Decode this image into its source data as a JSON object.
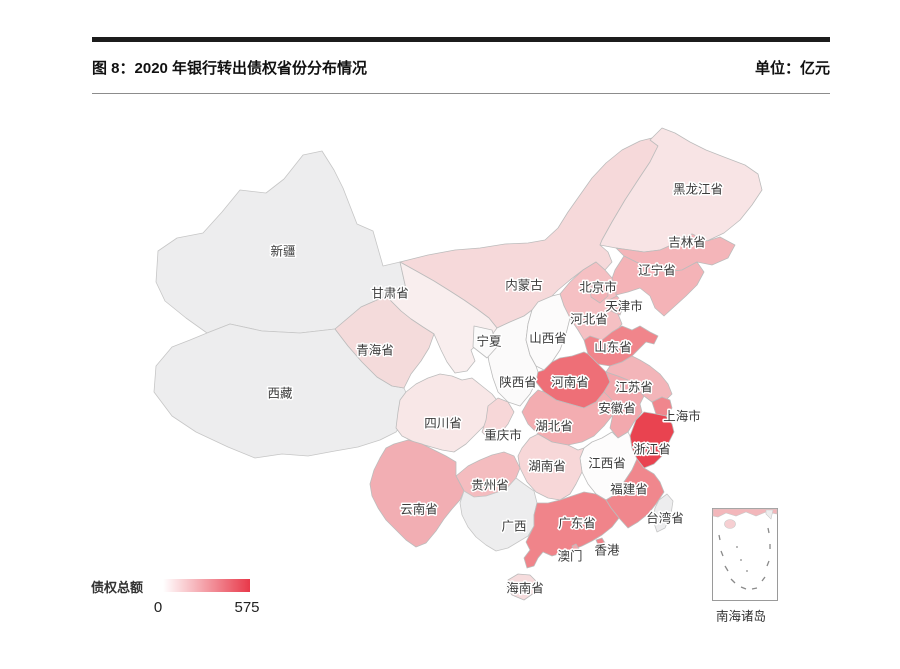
{
  "header": {
    "figure_label": "图 8：2020 年银行转出债权省份分布情况",
    "unit_label": "单位：亿元"
  },
  "legend": {
    "title": "债权总额",
    "min": "0",
    "max": "575",
    "gradient_start": "#ffffff",
    "gradient_end": "#e8394a"
  },
  "inset": {
    "label": "南海诸岛"
  },
  "chart_data": {
    "type": "choropleth-map",
    "title": "图 8：2020 年银行转出债权省份分布情况",
    "unit": "亿元",
    "legend": {
      "label": "债权总额",
      "min": 0,
      "max": 575
    },
    "no_data_color": "#ededee",
    "values_estimated_from_color_scale": true,
    "provinces": [
      {
        "id": "xinjiang",
        "name": "新疆",
        "value": null,
        "color": null
      },
      {
        "id": "xizang",
        "name": "西藏",
        "value": null,
        "color": null
      },
      {
        "id": "neimenggu",
        "name": "内蒙古",
        "value": 100,
        "color": "#f6d9da"
      },
      {
        "id": "gansu",
        "name": "甘肃省",
        "value": 40,
        "color": "#f9eeee"
      },
      {
        "id": "qinghai",
        "name": "青海省",
        "value": 95,
        "color": "#f4dbdb"
      },
      {
        "id": "shaanxi",
        "name": "陕西省",
        "value": 15,
        "color": "#fbfafa"
      },
      {
        "id": "ningxia",
        "name": "宁夏",
        "value": 12,
        "color": "#fbfafa"
      },
      {
        "id": "heilongjiang",
        "name": "黑龙江省",
        "value": 75,
        "color": "#f8e4e5"
      },
      {
        "id": "jilin",
        "name": "吉林省",
        "value": 195,
        "color": "#f4b5b9"
      },
      {
        "id": "liaoning",
        "name": "辽宁省",
        "value": 200,
        "color": "#f4b3b7"
      },
      {
        "id": "hebei",
        "name": "河北省",
        "value": 165,
        "color": "#f5c0c3"
      },
      {
        "id": "beijing",
        "name": "北京市",
        "value": 195,
        "color": "#f4b3b7"
      },
      {
        "id": "tianjin",
        "name": "天津市",
        "value": 190,
        "color": "#f4b5b9"
      },
      {
        "id": "shanxi",
        "name": "山西省",
        "value": 15,
        "color": "#fcfbfb"
      },
      {
        "id": "shandong",
        "name": "山东省",
        "value": 310,
        "color": "#f0858b"
      },
      {
        "id": "henan",
        "name": "河南省",
        "value": 390,
        "color": "#ee6f77"
      },
      {
        "id": "sichuan",
        "name": "四川省",
        "value": 70,
        "color": "#f8e7e7"
      },
      {
        "id": "chongqing",
        "name": "重庆市",
        "value": 110,
        "color": "#f7d7d8"
      },
      {
        "id": "hubei",
        "name": "湖北省",
        "value": 215,
        "color": "#f3adb1"
      },
      {
        "id": "anhui",
        "name": "安徽省",
        "value": 230,
        "color": "#f2a9ae"
      },
      {
        "id": "jiangsu",
        "name": "江苏省",
        "value": 190,
        "color": "#f3b5b9"
      },
      {
        "id": "shanghai",
        "name": "上海市",
        "value": 300,
        "color": "#f0868d"
      },
      {
        "id": "zhejiang",
        "name": "浙江省",
        "value": 575,
        "color": "#e94350"
      },
      {
        "id": "jiangxi",
        "name": "江西省",
        "value": 10,
        "color": "#fdfcfc"
      },
      {
        "id": "hunan",
        "name": "湖南省",
        "value": 108,
        "color": "#f7d7d8"
      },
      {
        "id": "fujian",
        "name": "福建省",
        "value": 300,
        "color": "#f0878d"
      },
      {
        "id": "guizhou",
        "name": "贵州省",
        "value": 175,
        "color": "#f4bcbf"
      },
      {
        "id": "yunnan",
        "name": "云南省",
        "value": 220,
        "color": "#f2aeb3"
      },
      {
        "id": "guangxi",
        "name": "广西",
        "value": null,
        "color": null
      },
      {
        "id": "guangdong",
        "name": "广东省",
        "value": 310,
        "color": "#f0848a"
      },
      {
        "id": "hainan",
        "name": "海南省",
        "value": 90,
        "color": "#f6dcdd"
      },
      {
        "id": "taiwan",
        "name": "台湾省",
        "value": null,
        "color": null
      },
      {
        "id": "xianggang",
        "name": "香港",
        "value": null,
        "color": "#f0848a"
      },
      {
        "id": "aomen",
        "name": "澳门",
        "value": null,
        "color": "#f2a9ae"
      }
    ]
  }
}
